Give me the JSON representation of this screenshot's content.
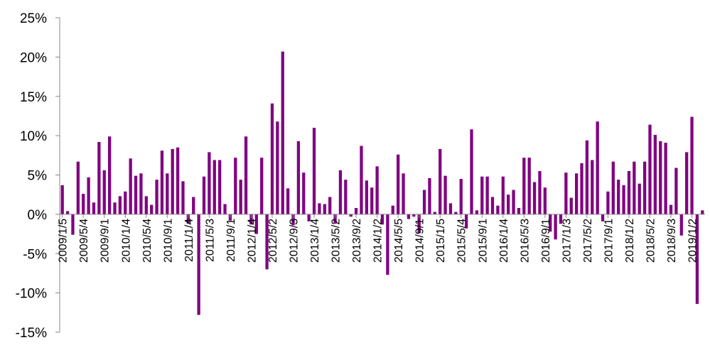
{
  "chart_data": {
    "type": "bar",
    "title": "",
    "xlabel": "",
    "ylabel": "",
    "ylim": [
      -0.15,
      0.25
    ],
    "ytick_values": [
      -0.15,
      -0.1,
      -0.05,
      0,
      0.05,
      0.1,
      0.15,
      0.2,
      0.25
    ],
    "ytick_labels": [
      "-15%",
      "-10%",
      "-5%",
      "0%",
      "5%",
      "10%",
      "15%",
      "20%",
      "25%"
    ],
    "xtick_labels": [
      "2009/1/5",
      "2009/5/4",
      "2009/9/1",
      "2010/1/4",
      "2010/5/4",
      "2010/9/1",
      "2011/1/4",
      "2011/5/3",
      "2011/9/1",
      "2012/1/4",
      "2012/5/2",
      "2012/9/3",
      "2013/1/4",
      "2013/5/2",
      "2013/9/2",
      "2014/1/2",
      "2014/5/5",
      "2014/9/1",
      "2015/1/5",
      "2015/5/4",
      "2015/9/1",
      "2016/1/4",
      "2016/5/3",
      "2016/9/1",
      "2017/1/3",
      "2017/5/2",
      "2017/9/1",
      "2018/1/2",
      "2018/5/2",
      "2018/9/3",
      "2019/1/2"
    ],
    "grid": false,
    "bar_color": "#800080",
    "values": [
      0.037,
      0.004,
      -0.026,
      0.067,
      0.026,
      0.047,
      0.015,
      0.092,
      0.056,
      0.099,
      0.015,
      0.023,
      0.029,
      0.071,
      0.049,
      0.052,
      0.023,
      0.012,
      0.044,
      0.081,
      0.052,
      0.083,
      0.085,
      0.042,
      -0.012,
      0.022,
      -0.128,
      0.048,
      0.079,
      0.069,
      0.069,
      0.013,
      -0.008,
      0.072,
      0.044,
      0.099,
      -0.013,
      -0.025,
      0.072,
      -0.07,
      0.141,
      0.118,
      0.207,
      0.033,
      -0.014,
      0.093,
      0.053,
      -0.009,
      0.11,
      0.014,
      0.013,
      0.022,
      -0.012,
      0.056,
      0.044,
      -0.003,
      0.008,
      0.087,
      0.043,
      0.034,
      0.061,
      -0.013,
      -0.077,
      0.011,
      0.076,
      0.052,
      -0.006,
      -0.003,
      -0.024,
      0.031,
      0.046,
      0.003,
      0.083,
      0.049,
      0.014,
      0.003,
      0.045,
      -0.018,
      0.108,
      0.005,
      0.048,
      0.048,
      0.022,
      0.011,
      0.048,
      0.025,
      0.031,
      0.008,
      0.072,
      0.072,
      0.041,
      0.055,
      0.034,
      -0.022,
      -0.032,
      -0.012,
      0.053,
      0.021,
      0.052,
      0.065,
      0.094,
      0.069,
      0.118,
      -0.009,
      0.029,
      0.067,
      0.044,
      0.037,
      0.055,
      0.067,
      0.039,
      0.067,
      0.114,
      0.101,
      0.093,
      0.091,
      0.012,
      0.059,
      -0.027,
      0.079,
      0.124,
      -0.114,
      0.005
    ]
  }
}
